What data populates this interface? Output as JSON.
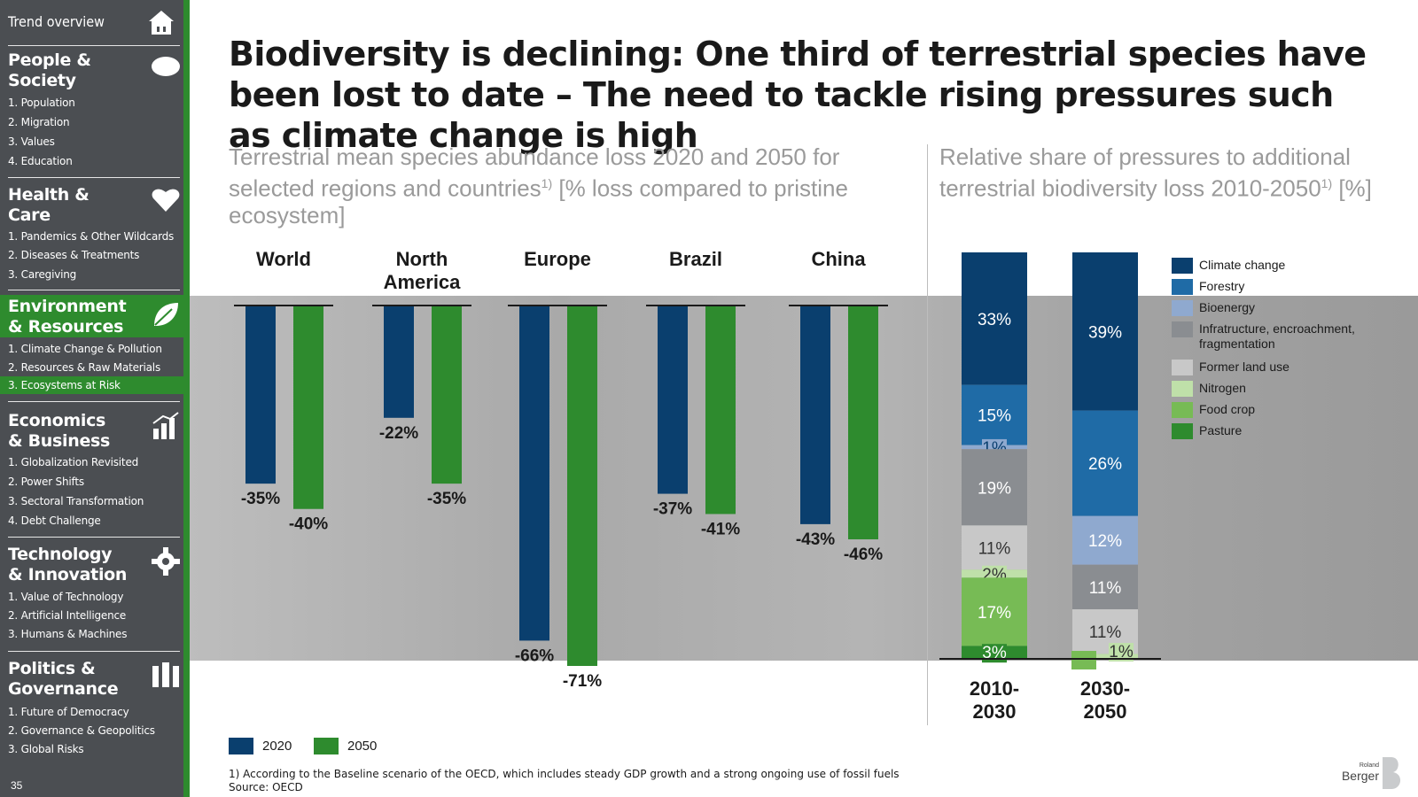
{
  "sidebar": {
    "overview_label": "Trend overview",
    "page_number": "35",
    "sections": [
      {
        "title_line1": "People &",
        "title_line2": "Society",
        "icon": "people-icon",
        "items": [
          "1. Population",
          "2. Migration",
          "3. Values",
          "4. Education"
        ]
      },
      {
        "title_line1": "Health &",
        "title_line2": "Care",
        "icon": "heart-icon",
        "items": [
          "1. Pandemics & Other Wildcards",
          "2. Diseases & Treatments",
          "3. Caregiving"
        ]
      },
      {
        "title_line1": "Environment",
        "title_line2": "& Resources",
        "icon": "leaf-icon",
        "items": [
          "1. Climate Change & Pollution",
          "2. Resources & Raw Materials",
          "3. Ecosystems at Risk"
        ]
      },
      {
        "title_line1": "Economics",
        "title_line2": "& Business",
        "icon": "growth-icon",
        "items": [
          "1. Globalization Revisited",
          "2. Power Shifts",
          "3. Sectoral Transformation",
          "4. Debt Challenge"
        ]
      },
      {
        "title_line1": "Technology",
        "title_line2": "& Innovation",
        "icon": "gear-icon",
        "items": [
          "1. Value of Technology",
          "2. Artificial Intelligence",
          "3. Humans & Machines"
        ]
      },
      {
        "title_line1": "Politics &",
        "title_line2": "Governance",
        "icon": "governance-icon",
        "items": [
          "1. Future of Democracy",
          "2. Governance & Geopolitics",
          "3. Global Risks"
        ]
      }
    ]
  },
  "title": "Biodiversity is declining: One third of terrestrial species have been lost to date – The need to tackle rising pressures such as climate change is high",
  "left_subtitle": {
    "text": "Terrestrial mean species abundance loss 2020 and 2050 for selected regions and countries",
    "sup": "1)",
    "suffix": " [% loss compared to pristine ecosystem]"
  },
  "right_subtitle": {
    "text": "Relative share of pressures to additional terrestrial biodiversity loss 2010-2050",
    "sup": "1)",
    "suffix": " [%]"
  },
  "chart_data": [
    {
      "type": "bar",
      "categories": [
        "World",
        "North America",
        "Europe",
        "Brazil",
        "China"
      ],
      "series": [
        {
          "name": "2020",
          "values": [
            -35,
            -22,
            -66,
            -37,
            -43
          ],
          "labels": [
            "-35%",
            "-22%",
            "-66%",
            "-37%",
            "-43%"
          ],
          "color": "#0a3f6e"
        },
        {
          "name": "2050",
          "values": [
            -40,
            -35,
            -71,
            -41,
            -46
          ],
          "labels": [
            "-40%",
            "-35%",
            "-71%",
            "-41%",
            "-46%"
          ],
          "color": "#2e8b2e"
        }
      ],
      "ylim": [
        -71,
        0
      ],
      "legend": "bottom-left"
    },
    {
      "type": "bar",
      "stacked": true,
      "categories": [
        "2010-2030",
        "2030-2050"
      ],
      "series": [
        {
          "name": "Climate change",
          "values": [
            33,
            39
          ],
          "color": "#0a3f6e"
        },
        {
          "name": "Forestry",
          "values": [
            15,
            26
          ],
          "color": "#1f6ba6"
        },
        {
          "name": "Bioenergy",
          "values": [
            1,
            12
          ],
          "color": "#8fa9cf"
        },
        {
          "name": "Infratructure, encroachment, fragmentation",
          "values": [
            19,
            11
          ],
          "color": "#8a8d91"
        },
        {
          "name": "Former land use",
          "values": [
            11,
            11
          ],
          "color": "#c8c8c8"
        },
        {
          "name": "Nitrogen",
          "values": [
            2,
            1
          ],
          "color": "#bfe0a9"
        },
        {
          "name": "Food crop",
          "values": [
            17,
            0
          ],
          "color": "#77bb55"
        },
        {
          "name": "Pasture",
          "values": [
            3,
            0
          ],
          "color": "#2e8b2e"
        }
      ],
      "legend": "right"
    }
  ],
  "footnote": "1) According to the Baseline scenario of the OECD, which includes steady GDP growth and a strong ongoing use of fossil fuels",
  "source": "Source: OECD",
  "logo": {
    "line1": "Roland",
    "line2": "Berger"
  }
}
